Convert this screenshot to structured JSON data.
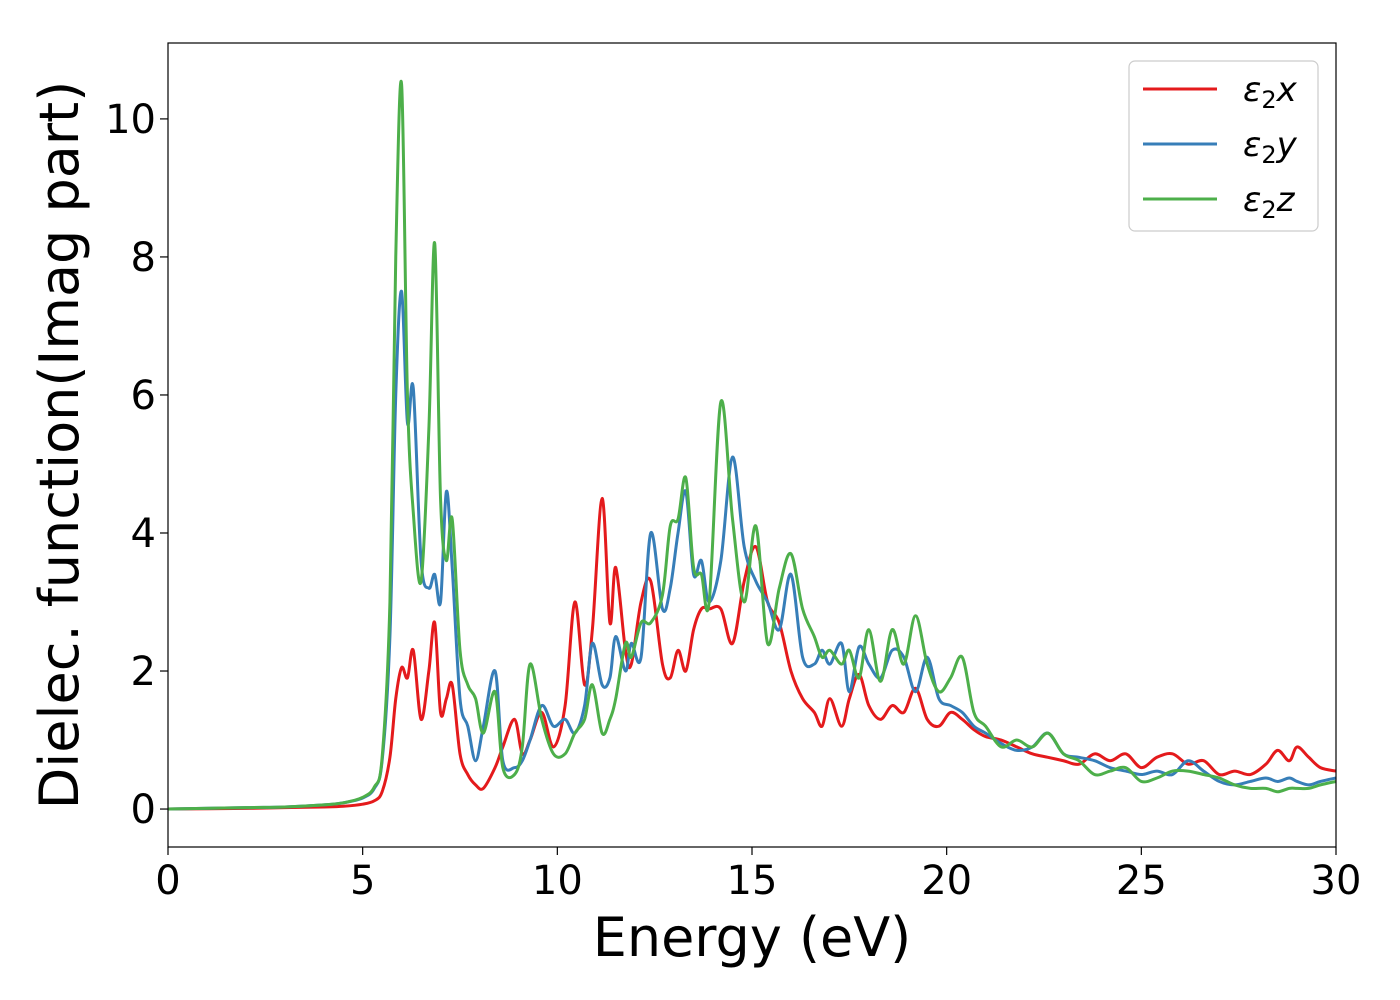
{
  "chart_data": {
    "type": "line",
    "xlabel": "Energy (eV)",
    "ylabel": "Dielec. function(Imag part)",
    "xlim": [
      0,
      30
    ],
    "ylim": [
      -0.55,
      11.1
    ],
    "x_ticks": [
      0,
      5,
      10,
      15,
      20,
      25,
      30
    ],
    "y_ticks": [
      0,
      2,
      4,
      6,
      8,
      10
    ],
    "grid": false,
    "legend_position": "top-right",
    "series": [
      {
        "name": "ε2x",
        "legend_base": "ε",
        "legend_sub": "2",
        "legend_suffix": "x",
        "color": "#e41a1c",
        "x": [
          0,
          2,
          3,
          4,
          4.5,
          5,
          5.3,
          5.5,
          5.7,
          5.85,
          6.0,
          6.15,
          6.3,
          6.5,
          6.7,
          6.85,
          7.0,
          7.15,
          7.3,
          7.5,
          7.7,
          7.9,
          8.1,
          8.4,
          8.6,
          8.9,
          9.1,
          9.3,
          9.6,
          9.9,
          10.2,
          10.45,
          10.7,
          10.9,
          11.15,
          11.35,
          11.5,
          11.75,
          11.9,
          12.15,
          12.4,
          12.7,
          12.9,
          13.1,
          13.3,
          13.5,
          13.7,
          13.9,
          14.2,
          14.5,
          14.8,
          15.1,
          15.4,
          15.7,
          16.0,
          16.3,
          16.6,
          16.8,
          17.0,
          17.3,
          17.5,
          17.75,
          18.0,
          18.3,
          18.6,
          18.9,
          19.2,
          19.5,
          19.8,
          20.1,
          20.4,
          20.7,
          21.0,
          21.4,
          21.8,
          22.2,
          22.6,
          23.0,
          23.4,
          23.8,
          24.2,
          24.6,
          25.0,
          25.4,
          25.8,
          26.2,
          26.6,
          27.0,
          27.4,
          27.8,
          28.2,
          28.5,
          28.8,
          29.0,
          29.3,
          29.6,
          30.0
        ],
        "y": [
          0,
          0.01,
          0.02,
          0.03,
          0.04,
          0.07,
          0.12,
          0.25,
          0.75,
          1.6,
          2.05,
          1.9,
          2.3,
          1.3,
          2.0,
          2.7,
          1.4,
          1.6,
          1.8,
          0.8,
          0.5,
          0.35,
          0.3,
          0.6,
          0.9,
          1.3,
          0.8,
          1.0,
          1.4,
          0.9,
          1.5,
          3.0,
          1.8,
          2.6,
          4.5,
          2.7,
          3.5,
          2.3,
          2.1,
          3.0,
          3.3,
          2.1,
          1.9,
          2.3,
          2.0,
          2.6,
          2.9,
          2.9,
          2.9,
          2.4,
          3.3,
          3.8,
          3.0,
          2.7,
          2.0,
          1.6,
          1.4,
          1.2,
          1.6,
          1.2,
          1.6,
          1.95,
          1.5,
          1.3,
          1.5,
          1.4,
          1.75,
          1.3,
          1.2,
          1.4,
          1.3,
          1.15,
          1.05,
          1.0,
          0.9,
          0.8,
          0.75,
          0.7,
          0.65,
          0.8,
          0.7,
          0.8,
          0.6,
          0.75,
          0.8,
          0.65,
          0.7,
          0.5,
          0.55,
          0.5,
          0.65,
          0.85,
          0.7,
          0.9,
          0.75,
          0.6,
          0.55
        ]
      },
      {
        "name": "ε2y",
        "legend_base": "ε",
        "legend_sub": "2",
        "legend_suffix": "y",
        "color": "#377eb8",
        "x": [
          0,
          2,
          3,
          4,
          4.5,
          5,
          5.3,
          5.5,
          5.7,
          5.85,
          6.0,
          6.15,
          6.3,
          6.5,
          6.7,
          6.85,
          7.0,
          7.15,
          7.3,
          7.5,
          7.7,
          7.9,
          8.1,
          8.4,
          8.6,
          8.9,
          9.1,
          9.3,
          9.6,
          9.9,
          10.2,
          10.45,
          10.7,
          10.9,
          11.15,
          11.35,
          11.5,
          11.75,
          11.9,
          12.15,
          12.4,
          12.7,
          12.9,
          13.1,
          13.3,
          13.5,
          13.7,
          13.9,
          14.2,
          14.5,
          14.8,
          15.1,
          15.4,
          15.7,
          16.0,
          16.3,
          16.6,
          16.8,
          17.0,
          17.3,
          17.5,
          17.75,
          18.0,
          18.3,
          18.6,
          18.9,
          19.2,
          19.5,
          19.8,
          20.1,
          20.4,
          20.7,
          21.0,
          21.4,
          21.8,
          22.2,
          22.6,
          23.0,
          23.4,
          23.8,
          24.2,
          24.6,
          25.0,
          25.4,
          25.8,
          26.2,
          26.6,
          27.0,
          27.4,
          27.8,
          28.2,
          28.5,
          28.8,
          29.0,
          29.3,
          29.6,
          30.0
        ],
        "y": [
          0,
          0.02,
          0.03,
          0.06,
          0.09,
          0.16,
          0.3,
          0.7,
          2.5,
          6.0,
          7.5,
          5.6,
          6.1,
          3.6,
          3.2,
          3.4,
          3.0,
          4.6,
          3.5,
          1.6,
          1.2,
          0.7,
          1.2,
          2.0,
          0.7,
          0.6,
          0.7,
          1.0,
          1.5,
          1.2,
          1.3,
          1.1,
          1.5,
          2.4,
          1.8,
          1.9,
          2.5,
          2.0,
          2.4,
          2.2,
          4.0,
          2.9,
          3.2,
          4.0,
          4.6,
          3.4,
          3.6,
          3.0,
          3.6,
          5.1,
          3.8,
          3.3,
          3.0,
          2.6,
          3.4,
          2.2,
          2.1,
          2.3,
          2.1,
          2.4,
          1.7,
          2.35,
          2.1,
          1.9,
          2.3,
          2.2,
          1.7,
          2.2,
          1.6,
          1.5,
          1.4,
          1.2,
          1.1,
          0.95,
          0.85,
          0.9,
          1.1,
          0.8,
          0.75,
          0.7,
          0.6,
          0.55,
          0.5,
          0.55,
          0.5,
          0.7,
          0.55,
          0.4,
          0.35,
          0.4,
          0.45,
          0.4,
          0.45,
          0.4,
          0.35,
          0.4,
          0.45
        ]
      },
      {
        "name": "ε2z",
        "legend_base": "ε",
        "legend_sub": "2",
        "legend_suffix": "z",
        "color": "#4daf4a",
        "x": [
          0,
          2,
          3,
          4,
          4.5,
          5,
          5.3,
          5.5,
          5.7,
          5.85,
          6.0,
          6.15,
          6.3,
          6.5,
          6.7,
          6.85,
          7.0,
          7.15,
          7.3,
          7.5,
          7.7,
          7.9,
          8.1,
          8.4,
          8.6,
          8.9,
          9.1,
          9.3,
          9.6,
          9.9,
          10.2,
          10.45,
          10.7,
          10.9,
          11.15,
          11.35,
          11.5,
          11.75,
          11.9,
          12.15,
          12.4,
          12.7,
          12.9,
          13.1,
          13.3,
          13.5,
          13.7,
          13.9,
          14.2,
          14.5,
          14.8,
          15.1,
          15.4,
          15.7,
          16.0,
          16.3,
          16.6,
          16.8,
          17.0,
          17.3,
          17.5,
          17.75,
          18.0,
          18.3,
          18.6,
          18.9,
          19.2,
          19.5,
          19.8,
          20.1,
          20.4,
          20.7,
          21.0,
          21.4,
          21.8,
          22.2,
          22.6,
          23.0,
          23.4,
          23.8,
          24.2,
          24.6,
          25.0,
          25.4,
          25.8,
          26.2,
          26.6,
          27.0,
          27.4,
          27.8,
          28.2,
          28.5,
          28.8,
          29.0,
          29.3,
          29.6,
          30.0
        ],
        "y": [
          0,
          0.02,
          0.03,
          0.06,
          0.09,
          0.17,
          0.32,
          0.75,
          3.0,
          8.0,
          10.5,
          6.0,
          4.3,
          3.3,
          5.5,
          8.2,
          4.5,
          3.6,
          4.2,
          2.3,
          1.8,
          1.6,
          1.1,
          1.7,
          0.6,
          0.5,
          0.9,
          2.1,
          1.3,
          0.8,
          0.8,
          1.1,
          1.3,
          1.8,
          1.1,
          1.3,
          1.6,
          2.4,
          2.2,
          2.7,
          2.7,
          3.1,
          4.1,
          4.2,
          4.8,
          3.5,
          3.4,
          3.0,
          5.9,
          4.2,
          3.0,
          4.1,
          2.4,
          3.2,
          3.7,
          2.9,
          2.5,
          2.2,
          2.3,
          2.1,
          2.3,
          1.9,
          2.6,
          1.85,
          2.6,
          2.1,
          2.8,
          2.1,
          1.7,
          1.9,
          2.2,
          1.4,
          1.2,
          0.9,
          1.0,
          0.9,
          1.1,
          0.8,
          0.7,
          0.5,
          0.55,
          0.6,
          0.4,
          0.45,
          0.55,
          0.55,
          0.5,
          0.45,
          0.35,
          0.3,
          0.3,
          0.25,
          0.3,
          0.3,
          0.3,
          0.35,
          0.4
        ]
      }
    ]
  }
}
